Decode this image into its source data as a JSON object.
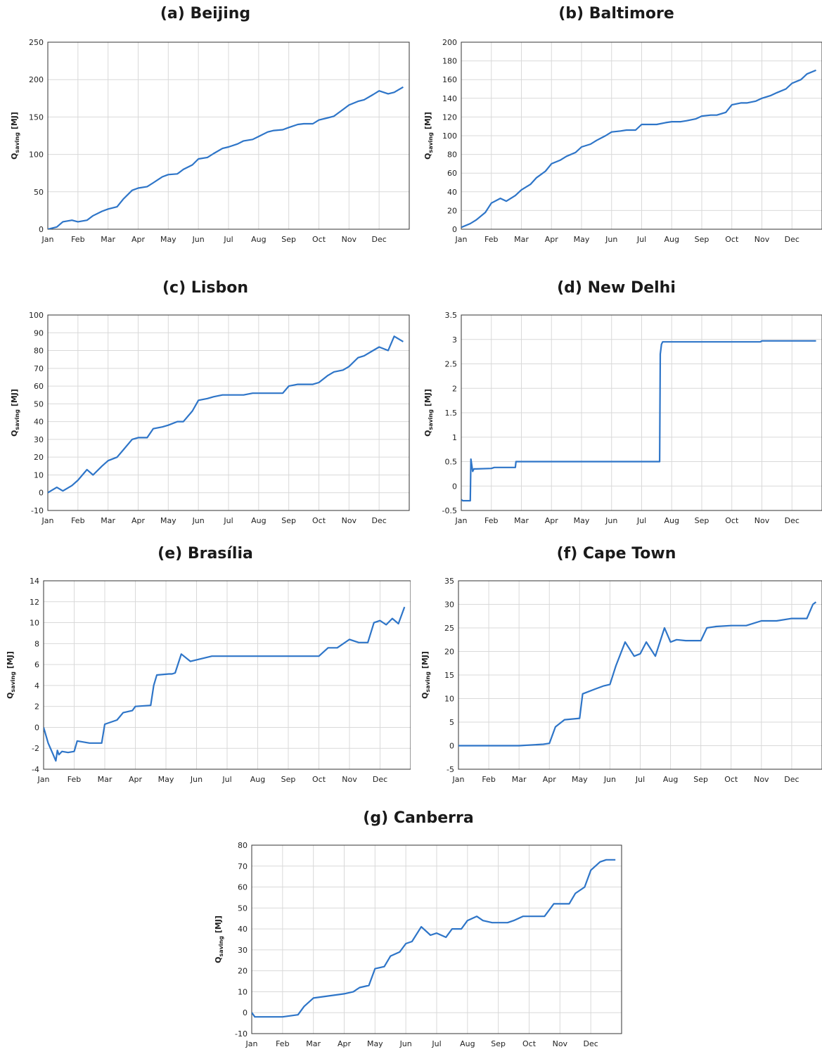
{
  "chart_data": [
    {
      "type": "line",
      "panel": "a",
      "title": "(a) Beijing",
      "ylabel": "Q_saving [MJ]",
      "ylim": [
        0,
        250
      ],
      "yticks": [
        0,
        50,
        100,
        150,
        200,
        250
      ],
      "tick_labels_x": [
        "Jan",
        "Feb",
        "Mar",
        "Apr",
        "May",
        "Jun",
        "Jul",
        "Aug",
        "Sep",
        "Oct",
        "Nov",
        "Dec"
      ],
      "grid": true,
      "line_color": "#2E75C8",
      "series": [
        {
          "x": [
            0,
            0.3,
            0.5,
            0.8,
            1.0,
            1.3,
            1.5,
            1.8,
            2.0,
            2.3,
            2.5,
            2.8,
            3.0,
            3.3,
            3.5,
            3.8,
            4.0,
            4.3,
            4.5,
            4.8,
            5.0,
            5.3,
            5.5,
            5.8,
            6.0,
            6.3,
            6.5,
            6.8,
            7.0,
            7.3,
            7.5,
            7.8,
            8.0,
            8.3,
            8.5,
            8.8,
            9.0,
            9.3,
            9.5,
            9.8,
            10.0,
            10.3,
            10.5,
            10.8,
            11.0,
            11.3,
            11.5,
            11.8
          ],
          "y": [
            0,
            3,
            10,
            12,
            10,
            12,
            18,
            24,
            27,
            30,
            40,
            52,
            55,
            57,
            62,
            70,
            73,
            74,
            80,
            86,
            94,
            96,
            101,
            108,
            110,
            114,
            118,
            120,
            124,
            130,
            132,
            133,
            136,
            140,
            141,
            141,
            146,
            149,
            151,
            160,
            166,
            171,
            173,
            180,
            185,
            181,
            183,
            190
          ]
        }
      ]
    },
    {
      "type": "line",
      "panel": "b",
      "title": "(b) Baltimore",
      "ylabel": "Q_saving [MJ]",
      "ylim": [
        0,
        200
      ],
      "yticks": [
        0,
        20,
        40,
        60,
        80,
        100,
        120,
        140,
        160,
        180,
        200
      ],
      "tick_labels_x": [
        "Jan",
        "Feb",
        "Mar",
        "Apr",
        "May",
        "Jun",
        "Jul",
        "Aug",
        "Sep",
        "Oct",
        "Nov",
        "Dec"
      ],
      "grid": true,
      "line_color": "#2E75C8",
      "series": [
        {
          "x": [
            0,
            0.3,
            0.5,
            0.8,
            1.0,
            1.3,
            1.5,
            1.8,
            2.0,
            2.3,
            2.5,
            2.8,
            3.0,
            3.3,
            3.5,
            3.8,
            4.0,
            4.3,
            4.5,
            4.8,
            5.0,
            5.3,
            5.5,
            5.8,
            6.0,
            6.3,
            6.5,
            6.8,
            7.0,
            7.3,
            7.5,
            7.8,
            8.0,
            8.3,
            8.5,
            8.8,
            9.0,
            9.3,
            9.5,
            9.8,
            10.0,
            10.3,
            10.5,
            10.8,
            11.0,
            11.3,
            11.5,
            11.8
          ],
          "y": [
            2,
            6,
            10,
            18,
            28,
            33,
            30,
            36,
            42,
            48,
            55,
            62,
            70,
            74,
            78,
            82,
            88,
            91,
            95,
            100,
            104,
            105,
            106,
            106,
            112,
            112,
            112,
            114,
            115,
            115,
            116,
            118,
            121,
            122,
            122,
            125,
            133,
            135,
            135,
            137,
            140,
            143,
            146,
            150,
            156,
            160,
            166,
            170
          ]
        }
      ]
    },
    {
      "type": "line",
      "panel": "c",
      "title": "(c) Lisbon",
      "ylabel": "Q_saving [MJ]",
      "ylim": [
        -10,
        100
      ],
      "yticks": [
        -10,
        0,
        10,
        20,
        30,
        40,
        50,
        60,
        70,
        80,
        90,
        100
      ],
      "tick_labels_x": [
        "Jan",
        "Feb",
        "Mar",
        "Apr",
        "May",
        "Jun",
        "Jul",
        "Aug",
        "Sep",
        "Oct",
        "Nov",
        "Dec"
      ],
      "grid": true,
      "line_color": "#2E75C8",
      "series": [
        {
          "x": [
            0,
            0.3,
            0.5,
            0.8,
            1.0,
            1.3,
            1.5,
            1.8,
            2.0,
            2.3,
            2.5,
            2.8,
            3.0,
            3.3,
            3.5,
            3.8,
            4.0,
            4.3,
            4.5,
            4.8,
            5.0,
            5.3,
            5.5,
            5.8,
            6.0,
            6.3,
            6.5,
            6.8,
            7.0,
            7.3,
            7.5,
            7.8,
            8.0,
            8.3,
            8.5,
            8.8,
            9.0,
            9.3,
            9.5,
            9.8,
            10.0,
            10.3,
            10.5,
            10.8,
            11.0,
            11.3,
            11.5,
            11.8
          ],
          "y": [
            0,
            3,
            1,
            4,
            7,
            13,
            10,
            15,
            18,
            20,
            24,
            30,
            31,
            31,
            36,
            37,
            38,
            40,
            40,
            46,
            52,
            53,
            54,
            55,
            55,
            55,
            55,
            56,
            56,
            56,
            56,
            56,
            60,
            61,
            61,
            61,
            62,
            66,
            68,
            69,
            71,
            76,
            77,
            80,
            82,
            80,
            88,
            85
          ]
        }
      ]
    },
    {
      "type": "line",
      "panel": "d",
      "title": "(d) New Delhi",
      "ylabel": "Q_saving [MJ]",
      "ylim": [
        -0.5,
        3.5
      ],
      "yticks": [
        -0.5,
        0,
        0.5,
        1,
        1.5,
        2,
        2.5,
        3,
        3.5
      ],
      "tick_labels_x": [
        "Jan",
        "Feb",
        "Mar",
        "Apr",
        "May",
        "Jun",
        "Jul",
        "Aug",
        "Sep",
        "Oct",
        "Nov",
        "Dec"
      ],
      "grid": true,
      "line_color": "#2E75C8",
      "series": [
        {
          "x": [
            0,
            0.05,
            0.3,
            0.32,
            0.38,
            0.42,
            0.5,
            1.0,
            1.1,
            1.8,
            1.82,
            2.5,
            6.6,
            6.62,
            6.66,
            6.7,
            8.0,
            9.95,
            10.0,
            11.8
          ],
          "y": [
            -0.28,
            -0.3,
            -0.3,
            0.55,
            0.3,
            0.35,
            0.35,
            0.36,
            0.38,
            0.38,
            0.5,
            0.5,
            0.5,
            2.7,
            2.9,
            2.95,
            2.95,
            2.95,
            2.97,
            2.97
          ]
        }
      ]
    },
    {
      "type": "line",
      "panel": "e",
      "title": "(e) Brasília",
      "ylabel": "Q_saving [MJ]",
      "ylim": [
        -4,
        14
      ],
      "yticks": [
        -4,
        -2,
        0,
        2,
        4,
        6,
        8,
        10,
        12,
        14
      ],
      "tick_labels_x": [
        "Jan",
        "Feb",
        "Mar",
        "Apr",
        "May",
        "Jun",
        "Jul",
        "Aug",
        "Sep",
        "Oct",
        "Nov",
        "Dec"
      ],
      "grid": true,
      "line_color": "#2E75C8",
      "series": [
        {
          "x": [
            0,
            0.15,
            0.3,
            0.4,
            0.45,
            0.5,
            0.6,
            0.8,
            1.0,
            1.1,
            1.5,
            1.9,
            2.0,
            2.4,
            2.6,
            2.9,
            3.0,
            3.5,
            3.6,
            3.7,
            4.1,
            4.2,
            4.3,
            4.5,
            4.8,
            5.5,
            6.0,
            7.0,
            8.0,
            9.0,
            9.3,
            9.6,
            10.0,
            10.3,
            10.6,
            10.8,
            11.0,
            11.2,
            11.4,
            11.6,
            11.8
          ],
          "y": [
            0,
            -1.5,
            -2.5,
            -3.2,
            -2.2,
            -2.6,
            -2.3,
            -2.4,
            -2.3,
            -1.3,
            -1.5,
            -1.5,
            0.3,
            0.7,
            1.4,
            1.6,
            2.0,
            2.1,
            4.0,
            5.0,
            5.1,
            5.1,
            5.2,
            7.0,
            6.3,
            6.8,
            6.8,
            6.8,
            6.8,
            6.8,
            7.6,
            7.6,
            8.4,
            8.1,
            8.1,
            10.0,
            10.2,
            9.8,
            10.4,
            9.9,
            11.5
          ]
        }
      ]
    },
    {
      "type": "line",
      "panel": "f",
      "title": "(f) Cape Town",
      "ylabel": "Q_saving [MJ]",
      "ylim": [
        -5,
        35
      ],
      "yticks": [
        -5,
        0,
        5,
        10,
        15,
        20,
        25,
        30,
        35
      ],
      "tick_labels_x": [
        "Jan",
        "Feb",
        "Mar",
        "Apr",
        "May",
        "Jun",
        "Jul",
        "Aug",
        "Sep",
        "Oct",
        "Nov",
        "Dec"
      ],
      "grid": true,
      "line_color": "#2E75C8",
      "series": [
        {
          "x": [
            0,
            1.0,
            2.0,
            2.8,
            3.0,
            3.2,
            3.5,
            4.0,
            4.1,
            4.5,
            4.8,
            5.0,
            5.2,
            5.5,
            5.8,
            6.0,
            6.2,
            6.5,
            6.8,
            7.0,
            7.2,
            7.5,
            8.0,
            8.2,
            8.5,
            9.0,
            9.5,
            10.0,
            10.5,
            11.0,
            11.5,
            11.7,
            11.8
          ],
          "y": [
            0,
            0,
            0,
            0.3,
            0.5,
            4.0,
            5.5,
            5.8,
            11.0,
            12.0,
            12.7,
            13.0,
            17.0,
            22.0,
            19.0,
            19.5,
            22.0,
            19.0,
            25.0,
            22.0,
            22.5,
            22.3,
            22.3,
            25.0,
            25.3,
            25.5,
            25.5,
            26.5,
            26.5,
            27.0,
            27.0,
            30.0,
            30.5
          ]
        }
      ]
    },
    {
      "type": "line",
      "panel": "g",
      "title": "(g) Canberra",
      "ylabel": "Q_saving [MJ]",
      "ylim": [
        -10,
        80
      ],
      "yticks": [
        -10,
        0,
        10,
        20,
        30,
        40,
        50,
        60,
        70,
        80
      ],
      "tick_labels_x": [
        "Jan",
        "Feb",
        "Mar",
        "Apr",
        "May",
        "Jun",
        "Jul",
        "Aug",
        "Sep",
        "Oct",
        "Nov",
        "Dec"
      ],
      "grid": true,
      "line_color": "#2E75C8",
      "series": [
        {
          "x": [
            0,
            0.1,
            0.5,
            1.0,
            1.5,
            1.7,
            2.0,
            2.5,
            3.0,
            3.3,
            3.5,
            3.8,
            4.0,
            4.3,
            4.5,
            4.8,
            5.0,
            5.2,
            5.5,
            5.8,
            6.0,
            6.3,
            6.5,
            6.8,
            7.0,
            7.3,
            7.5,
            7.8,
            8.0,
            8.3,
            8.5,
            8.8,
            9.0,
            9.3,
            9.5,
            9.8,
            10.0,
            10.3,
            10.5,
            10.8,
            11.0,
            11.3,
            11.5,
            11.8
          ],
          "y": [
            0,
            -2,
            -2,
            -2,
            -1,
            3,
            7,
            8,
            9,
            10,
            12,
            13,
            21,
            22,
            27,
            29,
            33,
            34,
            41,
            37,
            38,
            36,
            40,
            40,
            44,
            46,
            44,
            43,
            43,
            43,
            44,
            46,
            46,
            46,
            46,
            52,
            52,
            52,
            57,
            60,
            68,
            72,
            73,
            73
          ]
        }
      ]
    }
  ]
}
